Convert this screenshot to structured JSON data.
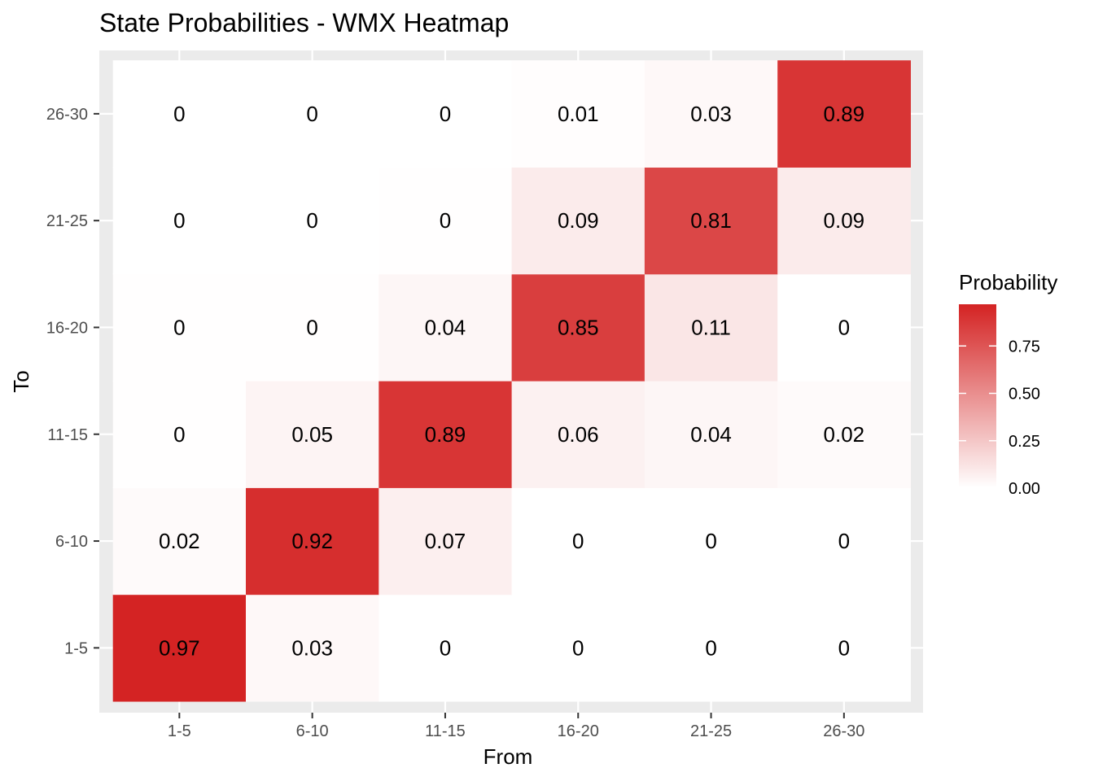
{
  "chart_data": {
    "type": "heatmap",
    "title": "State Probabilities - WMX Heatmap",
    "xlabel": "From",
    "ylabel": "To",
    "x_categories": [
      "1-5",
      "6-10",
      "11-15",
      "16-20",
      "21-25",
      "26-30"
    ],
    "y_categories": [
      "1-5",
      "6-10",
      "11-15",
      "16-20",
      "21-25",
      "26-30"
    ],
    "cells": [
      {
        "from": "1-5",
        "to": "1-5",
        "value": 0.97,
        "label": "0.97"
      },
      {
        "from": "6-10",
        "to": "1-5",
        "value": 0.03,
        "label": "0.03"
      },
      {
        "from": "11-15",
        "to": "1-5",
        "value": 0,
        "label": "0"
      },
      {
        "from": "16-20",
        "to": "1-5",
        "value": 0,
        "label": "0"
      },
      {
        "from": "21-25",
        "to": "1-5",
        "value": 0,
        "label": "0"
      },
      {
        "from": "26-30",
        "to": "1-5",
        "value": 0,
        "label": "0"
      },
      {
        "from": "1-5",
        "to": "6-10",
        "value": 0.02,
        "label": "0.02"
      },
      {
        "from": "6-10",
        "to": "6-10",
        "value": 0.92,
        "label": "0.92"
      },
      {
        "from": "11-15",
        "to": "6-10",
        "value": 0.07,
        "label": "0.07"
      },
      {
        "from": "16-20",
        "to": "6-10",
        "value": 0,
        "label": "0"
      },
      {
        "from": "21-25",
        "to": "6-10",
        "value": 0,
        "label": "0"
      },
      {
        "from": "26-30",
        "to": "6-10",
        "value": 0,
        "label": "0"
      },
      {
        "from": "1-5",
        "to": "11-15",
        "value": 0.004,
        "label": "0"
      },
      {
        "from": "6-10",
        "to": "11-15",
        "value": 0.05,
        "label": "0.05"
      },
      {
        "from": "11-15",
        "to": "11-15",
        "value": 0.89,
        "label": "0.89"
      },
      {
        "from": "16-20",
        "to": "11-15",
        "value": 0.06,
        "label": "0.06"
      },
      {
        "from": "21-25",
        "to": "11-15",
        "value": 0.04,
        "label": "0.04"
      },
      {
        "from": "26-30",
        "to": "11-15",
        "value": 0.02,
        "label": "0.02"
      },
      {
        "from": "1-5",
        "to": "16-20",
        "value": 0.003,
        "label": "0"
      },
      {
        "from": "6-10",
        "to": "16-20",
        "value": 0.004,
        "label": "0"
      },
      {
        "from": "11-15",
        "to": "16-20",
        "value": 0.04,
        "label": "0.04"
      },
      {
        "from": "16-20",
        "to": "16-20",
        "value": 0.85,
        "label": "0.85"
      },
      {
        "from": "21-25",
        "to": "16-20",
        "value": 0.11,
        "label": "0.11"
      },
      {
        "from": "26-30",
        "to": "16-20",
        "value": 0,
        "label": "0"
      },
      {
        "from": "1-5",
        "to": "21-25",
        "value": 0.001,
        "label": "0"
      },
      {
        "from": "6-10",
        "to": "21-25",
        "value": 0.001,
        "label": "0"
      },
      {
        "from": "11-15",
        "to": "21-25",
        "value": 0.004,
        "label": "0"
      },
      {
        "from": "16-20",
        "to": "21-25",
        "value": 0.09,
        "label": "0.09"
      },
      {
        "from": "21-25",
        "to": "21-25",
        "value": 0.81,
        "label": "0.81"
      },
      {
        "from": "26-30",
        "to": "21-25",
        "value": 0.09,
        "label": "0.09"
      },
      {
        "from": "1-5",
        "to": "26-30",
        "value": 0.001,
        "label": "0"
      },
      {
        "from": "6-10",
        "to": "26-30",
        "value": 0.001,
        "label": "0"
      },
      {
        "from": "11-15",
        "to": "26-30",
        "value": 0.001,
        "label": "0"
      },
      {
        "from": "16-20",
        "to": "26-30",
        "value": 0.01,
        "label": "0.01"
      },
      {
        "from": "21-25",
        "to": "26-30",
        "value": 0.03,
        "label": "0.03"
      },
      {
        "from": "26-30",
        "to": "26-30",
        "value": 0.89,
        "label": "0.89"
      }
    ],
    "color_scale": {
      "low": "#ffffff",
      "high": "#d42323",
      "range": [
        0,
        0.97
      ]
    },
    "legend": {
      "title": "Probability",
      "ticks": [
        {
          "value": 0.75,
          "label": "0.75"
        },
        {
          "value": 0.5,
          "label": "0.50"
        },
        {
          "value": 0.25,
          "label": "0.25"
        },
        {
          "value": 0,
          "label": "0.00"
        }
      ],
      "position": "right"
    },
    "grid": true,
    "panel_background": "#ebebeb"
  }
}
